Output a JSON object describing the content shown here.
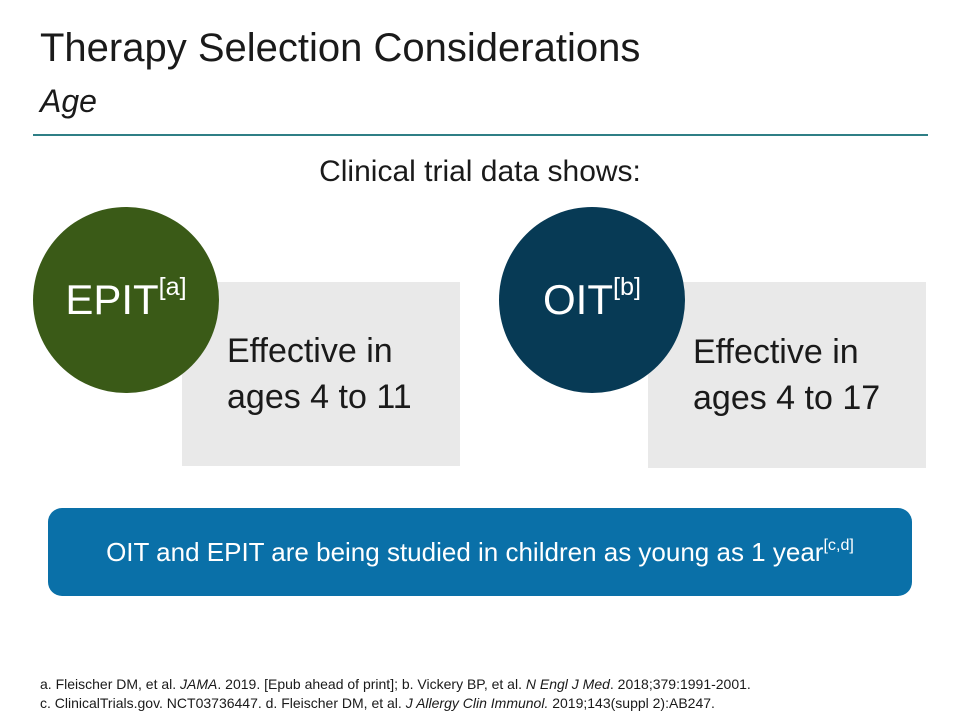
{
  "slide": {
    "title": "Therapy Selection Considerations",
    "subtitle": "Age",
    "intro": "Clinical trial data shows:"
  },
  "cards": [
    {
      "circle_label": "EPIT",
      "circle_ref": "[a]",
      "text_line1": "Effective in",
      "text_line2": "ages 4 to 11",
      "circle_color": "#3a5a17"
    },
    {
      "circle_label": "OIT",
      "circle_ref": "[b]",
      "text_line1": "Effective in",
      "text_line2": "ages 4 to 17",
      "circle_color": "#073a55"
    }
  ],
  "banner": {
    "text": "OIT and EPIT are being studied in children as young as 1 year",
    "ref": "[c,d]",
    "color": "#0a70a8"
  },
  "references": {
    "line1": {
      "a_prefix": "a. Fleischer DM, et al. ",
      "a_journal": "JAMA",
      "a_rest": ". 2019. [Epub ahead of print]; b. Vickery BP, et al. ",
      "b_journal": "N Engl J Med",
      "b_rest": ". 2018;379:1991-2001."
    },
    "line2": {
      "c_prefix": "c. ClinicalTrials.gov. NCT03736447. d. Fleischer DM, et al. ",
      "d_journal": "J Allergy Clin Immunol.",
      "d_rest": " 2019;143(suppl 2):AB247."
    }
  },
  "colors": {
    "rule": "#2f7f86",
    "card_bg": "#e9e9e9"
  }
}
